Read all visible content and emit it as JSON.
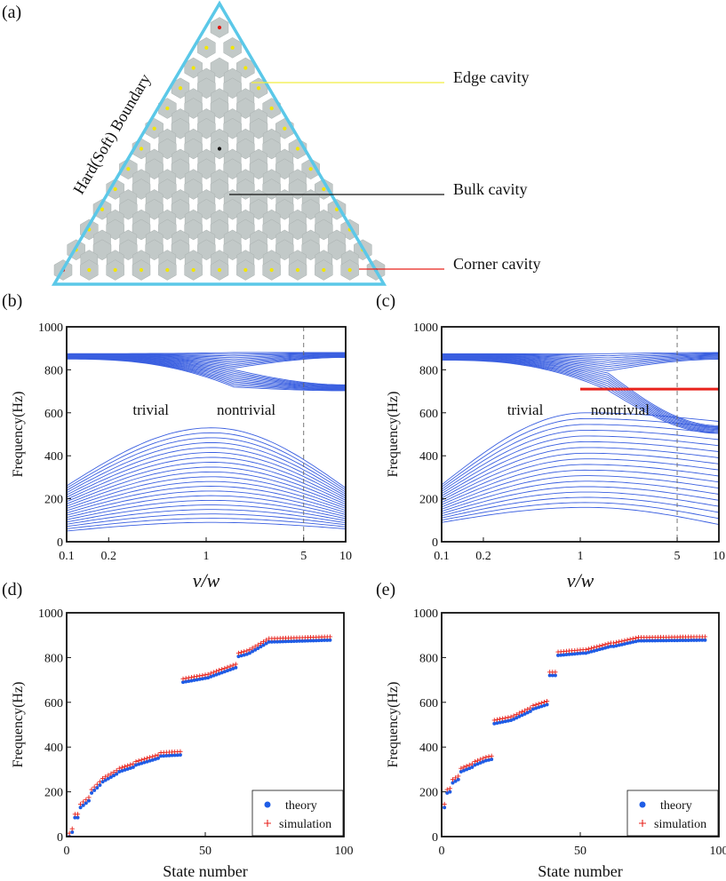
{
  "colors": {
    "band": "#3a5fe0",
    "red": "#e8231c",
    "theory": "#1f5de6",
    "simulation": "#e8231c",
    "triangle": "#5bc8e8",
    "hex": "#c2c9c8",
    "edge_dot": "#f2e600",
    "corner_dot": "#e0140a",
    "yellow_line": "#f2ee40"
  },
  "panel_a": {
    "label": "(a)",
    "boundary": "Hard(Soft) Boundary",
    "edge": "Edge cavity",
    "bulk": "Bulk cavity",
    "corner": "Corner cavity"
  },
  "chart_data": [
    {
      "panel": "(b)",
      "type": "line",
      "title": "",
      "xscale": "log",
      "xlim": [
        0.1,
        10
      ],
      "ylim": [
        0,
        1000
      ],
      "xticks": [
        "0.1",
        "0.2",
        "1",
        "5",
        "10"
      ],
      "xtick_values": [
        0.1,
        0.2,
        1,
        5,
        10
      ],
      "yticks": [
        "0",
        "200",
        "400",
        "600",
        "800",
        "1000"
      ],
      "ytick_values": [
        0,
        200,
        400,
        600,
        800,
        1000
      ],
      "ylabel": "Frequency(Hz)",
      "xlabel": "v/w",
      "dashed_x": 5,
      "annotations": [
        "trivial",
        "nontrivial"
      ],
      "bands": {
        "low_count": 21,
        "low_left": [
          50,
          260
        ],
        "low_peak": [
          90,
          530
        ],
        "low_right": [
          60,
          250
        ],
        "high_count": 21,
        "high_left": [
          850,
          875
        ],
        "high_mid": [
          720,
          880
        ],
        "high_right_top": [
          855,
          880
        ],
        "high_right_bottom": [
          700,
          730
        ]
      },
      "corner_band": null
    },
    {
      "panel": "(c)",
      "type": "line",
      "title": "",
      "xscale": "log",
      "xlim": [
        0.1,
        10
      ],
      "ylim": [
        0,
        1000
      ],
      "xticks": [
        "0.1",
        "0.2",
        "1",
        "5",
        "10"
      ],
      "xtick_values": [
        0.1,
        0.2,
        1,
        5,
        10
      ],
      "yticks": [
        "0",
        "200",
        "400",
        "600",
        "800",
        "1000"
      ],
      "ytick_values": [
        0,
        200,
        400,
        600,
        800,
        1000
      ],
      "ylabel": "Frequency(Hz)",
      "xlabel": "v/w",
      "dashed_x": 5,
      "annotations": [
        "trivial",
        "nontrivial"
      ],
      "bands": {
        "low_count": 18,
        "low_left": [
          90,
          265
        ],
        "low_peak": [
          160,
          600
        ],
        "low_right": [
          80,
          560
        ],
        "high_count": 18,
        "high_left": [
          845,
          875
        ],
        "high_mid": [
          705,
          875
        ],
        "high_right_top": [
          845,
          880
        ],
        "high_right_bottom": [
          500,
          540
        ]
      },
      "corner_band": {
        "x_start": 1,
        "x_end": 10,
        "y": 710
      }
    },
    {
      "panel": "(d)",
      "type": "scatter",
      "xlim": [
        0,
        100
      ],
      "ylim": [
        0,
        1000
      ],
      "xticks": [
        "0",
        "50",
        "100"
      ],
      "xtick_values": [
        0,
        50,
        100
      ],
      "yticks": [
        "0",
        "200",
        "400",
        "600",
        "800",
        "1000"
      ],
      "ytick_values": [
        0,
        200,
        400,
        600,
        800,
        1000
      ],
      "xlabel": "State number",
      "ylabel": "Frequency(Hz)",
      "legend": [
        "theory",
        "simulation"
      ],
      "segments": [
        [
          1,
          3,
          0,
          20
        ],
        [
          3,
          5,
          85,
          85
        ],
        [
          5,
          9,
          130,
          160
        ],
        [
          9,
          13,
          195,
          230
        ],
        [
          13,
          19,
          245,
          280
        ],
        [
          19,
          25,
          290,
          310
        ],
        [
          25,
          34,
          320,
          350
        ],
        [
          34,
          42,
          360,
          365
        ],
        [
          42,
          52,
          690,
          710
        ],
        [
          52,
          62,
          715,
          755
        ],
        [
          62,
          66,
          805,
          815
        ],
        [
          66,
          74,
          820,
          870
        ],
        [
          74,
          96,
          870,
          878
        ]
      ],
      "sim_offset": 15
    },
    {
      "panel": "(e)",
      "type": "scatter",
      "xlim": [
        0,
        100
      ],
      "ylim": [
        0,
        1000
      ],
      "xticks": [
        "0",
        "50",
        "100"
      ],
      "xtick_values": [
        0,
        50,
        100
      ],
      "yticks": [
        "0",
        "200",
        "400",
        "600",
        "800",
        "1000"
      ],
      "ytick_values": [
        0,
        200,
        400,
        600,
        800,
        1000
      ],
      "xlabel": "State number",
      "ylabel": "Frequency(Hz)",
      "legend": [
        "theory",
        "simulation"
      ],
      "segments": [
        [
          1,
          2,
          130,
          130
        ],
        [
          2,
          4,
          195,
          200
        ],
        [
          4,
          7,
          240,
          255
        ],
        [
          7,
          12,
          290,
          310
        ],
        [
          12,
          16,
          320,
          335
        ],
        [
          16,
          19,
          340,
          345
        ],
        [
          19,
          26,
          505,
          520
        ],
        [
          26,
          33,
          525,
          560
        ],
        [
          33,
          39,
          570,
          590
        ],
        [
          39,
          42,
          720,
          720
        ],
        [
          42,
          52,
          810,
          820
        ],
        [
          52,
          62,
          820,
          850
        ],
        [
          62,
          72,
          850,
          875
        ],
        [
          72,
          96,
          875,
          878
        ]
      ],
      "sim_offset": 15
    }
  ]
}
